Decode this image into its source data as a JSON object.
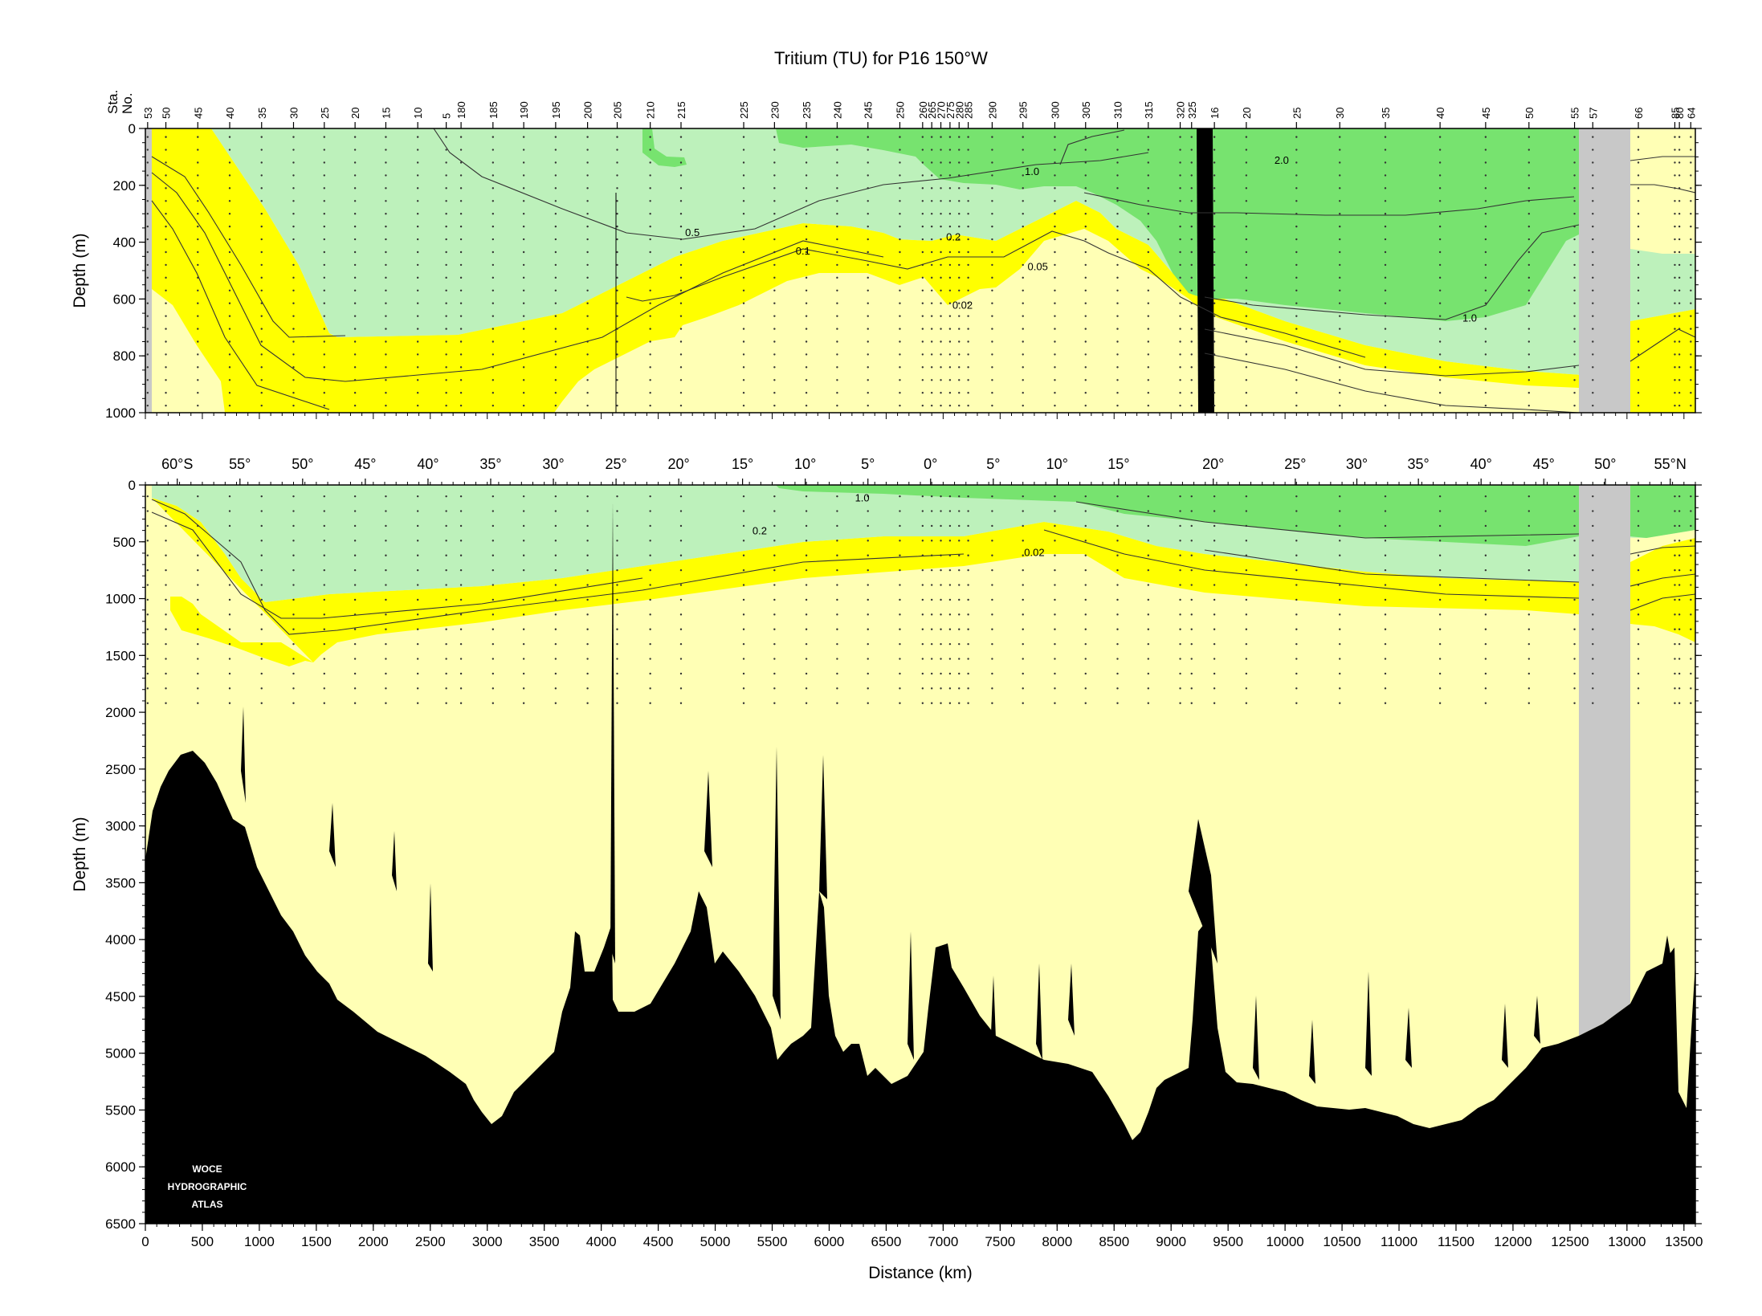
{
  "chart_data": [
    {
      "type": "heatmap",
      "panel": "upper",
      "title": "Tritium (TU) for P16 150°W",
      "ylabel": "Depth (m)",
      "station_axis_label": [
        "Sta.",
        "No."
      ],
      "ylim": [
        1000,
        0
      ],
      "xlim": [
        0,
        13600
      ],
      "y_ticks": [
        0,
        200,
        400,
        600,
        800,
        1000
      ],
      "stations": [
        {
          "label": "53",
          "km": 20
        },
        {
          "label": "50",
          "km": 180
        },
        {
          "label": "45",
          "km": 460
        },
        {
          "label": "40",
          "km": 740
        },
        {
          "label": "35",
          "km": 1020
        },
        {
          "label": "30",
          "km": 1300
        },
        {
          "label": "25",
          "km": 1570
        },
        {
          "label": "20",
          "km": 1840
        },
        {
          "label": "15",
          "km": 2110
        },
        {
          "label": "10",
          "km": 2390
        },
        {
          "label": "5",
          "km": 2640
        },
        {
          "label": "180",
          "km": 2770
        },
        {
          "label": "185",
          "km": 3050
        },
        {
          "label": "190",
          "km": 3320
        },
        {
          "label": "195",
          "km": 3600
        },
        {
          "label": "200",
          "km": 3880
        },
        {
          "label": "205",
          "km": 4140
        },
        {
          "label": "210",
          "km": 4430
        },
        {
          "label": "215",
          "km": 4700
        },
        {
          "label": "225",
          "km": 5250
        },
        {
          "label": "230",
          "km": 5520
        },
        {
          "label": "235",
          "km": 5800
        },
        {
          "label": "240",
          "km": 6070
        },
        {
          "label": "245",
          "km": 6340
        },
        {
          "label": "250",
          "km": 6620
        },
        {
          "label": "260",
          "km": 6820
        },
        {
          "label": "265",
          "km": 6900
        },
        {
          "label": "270",
          "km": 6980
        },
        {
          "label": "275",
          "km": 7060
        },
        {
          "label": "280",
          "km": 7140
        },
        {
          "label": "285",
          "km": 7220
        },
        {
          "label": "290",
          "km": 7430
        },
        {
          "label": "295",
          "km": 7700
        },
        {
          "label": "300",
          "km": 7980
        },
        {
          "label": "305",
          "km": 8250
        },
        {
          "label": "310",
          "km": 8530
        },
        {
          "label": "315",
          "km": 8800
        },
        {
          "label": "320",
          "km": 9080
        },
        {
          "label": "325",
          "km": 9180
        },
        {
          "label": "16",
          "km": 9380
        },
        {
          "label": "20",
          "km": 9660
        },
        {
          "label": "25",
          "km": 10100
        },
        {
          "label": "30",
          "km": 10480
        },
        {
          "label": "35",
          "km": 10880
        },
        {
          "label": "40",
          "km": 11360
        },
        {
          "label": "45",
          "km": 11760
        },
        {
          "label": "50",
          "km": 12140
        },
        {
          "label": "55",
          "km": 12540
        },
        {
          "label": "57",
          "km": 12700
        },
        {
          "label": "66",
          "km": 13100
        },
        {
          "label": "85",
          "km": 13420
        },
        {
          "label": "80",
          "km": 13460
        },
        {
          "label": "64",
          "km": 13560
        }
      ],
      "contour_levels": [
        0.02,
        0.05,
        0.1,
        0.2,
        0.5,
        1.0,
        2.0
      ],
      "contour_labels": [
        {
          "text": "2.0",
          "km": 9970,
          "depth": 110
        },
        {
          "text": "1.0",
          "km": 7780,
          "depth": 150
        },
        {
          "text": "0.5",
          "km": 4800,
          "depth": 365
        },
        {
          "text": "0.2",
          "km": 7090,
          "depth": 380
        },
        {
          "text": "0.1",
          "km": 5770,
          "depth": 430
        },
        {
          "text": "0.05",
          "km": 7830,
          "depth": 485
        },
        {
          "text": "0.02",
          "km": 7170,
          "depth": 620
        },
        {
          "text": "1.0",
          "km": 11620,
          "depth": 665
        }
      ],
      "fill_colors": {
        "above_1": "#77e36f",
        "0.2_to_1": "#bdf1bb",
        "0.02_to_0.2": "#ffff00",
        "below_0.02": "#ffffb5",
        "no_data": "#c8c8c8"
      }
    },
    {
      "type": "heatmap",
      "panel": "lower",
      "ylabel": "Depth (m)",
      "xlabel": "Distance (km)",
      "ylim": [
        6500,
        0
      ],
      "xlim": [
        0,
        13600
      ],
      "x_ticks": [
        0,
        500,
        1000,
        1500,
        2000,
        2500,
        3000,
        3500,
        4000,
        4500,
        5000,
        5500,
        6000,
        6500,
        7000,
        7500,
        8000,
        8500,
        9000,
        9500,
        10000,
        10500,
        11000,
        11500,
        12000,
        12500,
        13000,
        13500
      ],
      "y_ticks": [
        0,
        500,
        1000,
        1500,
        2000,
        2500,
        3000,
        3500,
        4000,
        4500,
        5000,
        5500,
        6000,
        6500
      ],
      "latitudes": [
        {
          "label": "60°S",
          "km": 280
        },
        {
          "label": "55°",
          "km": 830
        },
        {
          "label": "50°",
          "km": 1380
        },
        {
          "label": "45°",
          "km": 1930
        },
        {
          "label": "40°",
          "km": 2480
        },
        {
          "label": "35°",
          "km": 3030
        },
        {
          "label": "30°",
          "km": 3580
        },
        {
          "label": "25°",
          "km": 4130
        },
        {
          "label": "20°",
          "km": 4680
        },
        {
          "label": "15°",
          "km": 5240
        },
        {
          "label": "10°",
          "km": 5790
        },
        {
          "label": "5°",
          "km": 6340
        },
        {
          "label": "0°",
          "km": 6890
        },
        {
          "label": "5°",
          "km": 7440
        },
        {
          "label": "10°",
          "km": 8000
        },
        {
          "label": "15°",
          "km": 8540
        },
        {
          "label": "20°",
          "km": 9370
        },
        {
          "label": "25°",
          "km": 10090
        },
        {
          "label": "30°",
          "km": 10630
        },
        {
          "label": "35°",
          "km": 11170
        },
        {
          "label": "40°",
          "km": 11720
        },
        {
          "label": "45°",
          "km": 12270
        },
        {
          "label": "50°",
          "km": 12810
        },
        {
          "label": "55°N",
          "km": 13380
        }
      ],
      "contour_labels": [
        {
          "text": "1.0",
          "km": 6290,
          "depth": 110
        },
        {
          "text": "0.2",
          "km": 5390,
          "depth": 400
        },
        {
          "text": "0.02",
          "km": 7800,
          "depth": 590
        }
      ],
      "logo": [
        "WOCE",
        "HYDROGRAPHIC",
        "ATLAS"
      ]
    }
  ]
}
